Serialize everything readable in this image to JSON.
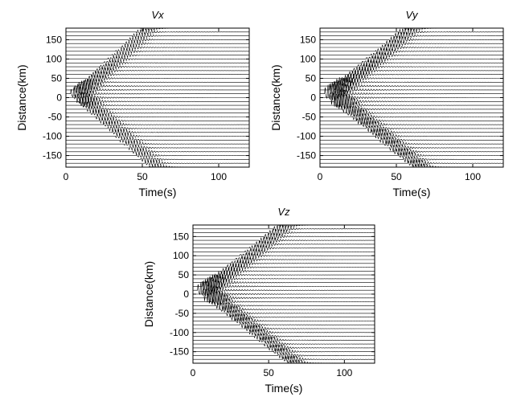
{
  "chart_data": [
    {
      "type": "line",
      "title": "Vx",
      "xlabel": "Time(s)",
      "ylabel": "Distance(km)",
      "xlim": [
        0,
        120
      ],
      "ylim": [
        -180,
        180
      ],
      "xticks": [
        0,
        50,
        100
      ],
      "yticks": [
        150,
        100,
        50,
        0,
        -50,
        -100,
        -150
      ],
      "trace_spacing_km": 10,
      "trace_count": 37,
      "source_distance_km": 10,
      "source_time_s": 5,
      "arrival_velocity_km_s": 3.7,
      "peak_amplitude_km": 22
    },
    {
      "type": "line",
      "title": "Vy",
      "xlabel": "Time(s)",
      "ylabel": "Distance(km)",
      "xlim": [
        0,
        120
      ],
      "ylim": [
        -180,
        180
      ],
      "xticks": [
        0,
        50,
        100
      ],
      "yticks": [
        150,
        100,
        50,
        0,
        -50,
        -100,
        -150
      ],
      "trace_spacing_km": 10,
      "trace_count": 37,
      "source_distance_km": 10,
      "source_time_s": 5,
      "arrival_velocity_km_s": 3.3,
      "peak_amplitude_km": 30
    },
    {
      "type": "line",
      "title": "Vz",
      "xlabel": "Time(s)",
      "ylabel": "Distance(km)",
      "xlim": [
        0,
        120
      ],
      "ylim": [
        -180,
        180
      ],
      "xticks": [
        0,
        50,
        100
      ],
      "yticks": [
        150,
        100,
        50,
        0,
        -50,
        -100,
        -150
      ],
      "trace_spacing_km": 10,
      "trace_count": 37,
      "source_distance_km": 10,
      "source_time_s": 5,
      "arrival_velocity_km_s": 3.2,
      "peak_amplitude_km": 28
    }
  ]
}
